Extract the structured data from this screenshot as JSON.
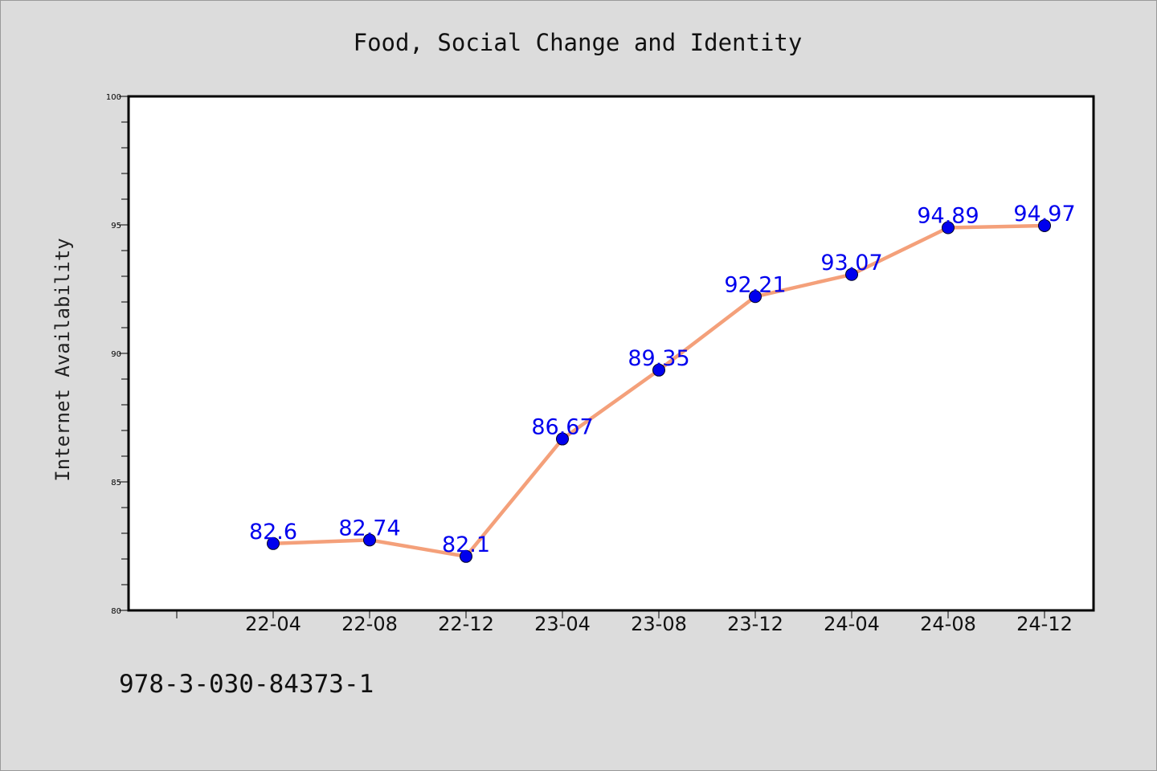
{
  "chart_data": {
    "type": "line",
    "title": "Food, Social Change and Identity",
    "xlabel": "",
    "ylabel": "Internet Availability",
    "categories": [
      "22-04",
      "22-08",
      "22-12",
      "23-04",
      "23-08",
      "23-12",
      "24-04",
      "24-08",
      "24-12"
    ],
    "series": [
      {
        "values": [
          82.6,
          82.74,
          82.1,
          86.67,
          89.35,
          92.21,
          93.07,
          94.89,
          94.97
        ],
        "labels": [
          "82.6",
          "82.74",
          "82.1",
          "86.67",
          "89.35",
          "92.21",
          "93.07",
          "94.89",
          "94.97"
        ]
      }
    ],
    "ylim": [
      80,
      100
    ],
    "yticks": [
      80,
      85,
      90,
      95,
      100
    ],
    "grid": false,
    "colors": {
      "line": "#f4a07a",
      "marker": "#0000ee",
      "label": "#0000ee",
      "background": "#dcdcdc",
      "plot_background": "#ffffff"
    }
  },
  "footer": {
    "id_text": "978-3-030-84373-1"
  }
}
